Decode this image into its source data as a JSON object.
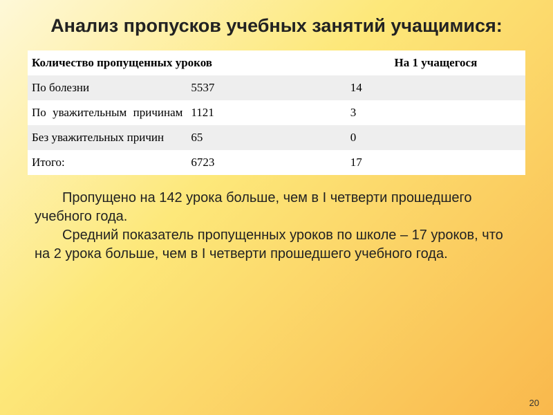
{
  "title": "Анализ пропусков учебных занятий учащимися:",
  "table": {
    "header_col1": "Количество пропущенных уроков",
    "header_col3": "На 1 учащегося",
    "rows": [
      {
        "label": "По болезни",
        "v1": "5537",
        "v2": "14",
        "label_class": ""
      },
      {
        "label": "По уважительным причинам",
        "v1": "1121",
        "v2": "3",
        "label_class": "justify-label"
      },
      {
        "label": "Без уважительных причин",
        "v1": "65",
        "v2": "0",
        "label_class": ""
      },
      {
        "label": "Итого:",
        "v1": "6723",
        "v2": "17",
        "label_class": ""
      }
    ]
  },
  "paragraph1": "Пропущено на 142 урока больше, чем в I четверти прошедшего учебного года.",
  "paragraph2": "Средний показатель пропущенных уроков по школе – 17 уроков, что на 2 урока больше, чем в I четверти прошедшего учебного года.",
  "page_number": "20",
  "colors": {
    "bg_gradient_start": "#fef8d8",
    "bg_gradient_mid": "#fde87a",
    "bg_gradient_end": "#f9b84c",
    "row_odd": "#eeeeee",
    "row_even": "#ffffff",
    "text": "#222222"
  }
}
